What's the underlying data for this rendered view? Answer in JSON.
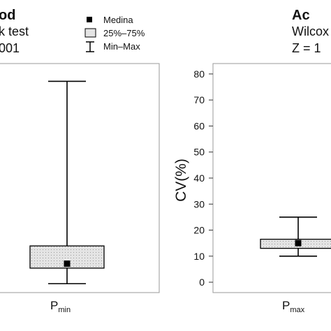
{
  "chart_data": [
    {
      "type": "box",
      "panel": "left",
      "title_lines": [
        "od",
        "k test",
        "001"
      ],
      "categories": [
        "P",
        "min"
      ],
      "box": {
        "min": 0,
        "q1": 7,
        "median": 9,
        "q3": 17,
        "max": 91
      },
      "ylim": [
        -4,
        99
      ],
      "grid": false,
      "legend": {
        "position": "top-right",
        "entries": [
          {
            "label": "Medina",
            "symbol": "square",
            "color": "#000000"
          },
          {
            "label": "25%–75%",
            "symbol": "box",
            "color": "#e4e4e4"
          },
          {
            "label": "Min–Max",
            "symbol": "whisker",
            "color": "#000000"
          }
        ]
      }
    },
    {
      "type": "box",
      "panel": "right",
      "title_lines": [
        "Ac",
        "Wilcox",
        "Z = 1"
      ],
      "ylabel": "CV(%)",
      "ylim": [
        -4,
        84
      ],
      "yticks": [
        0,
        10,
        20,
        30,
        40,
        50,
        60,
        70,
        80
      ],
      "categories": [
        "P",
        "max"
      ],
      "box": {
        "min": 10,
        "q1": 13,
        "median": 15,
        "q3": 16.5,
        "max": 25
      },
      "grid": false
    }
  ],
  "colors": {
    "box_fill": "#e4e4e4",
    "axis": "#333333",
    "text": "#111111"
  }
}
